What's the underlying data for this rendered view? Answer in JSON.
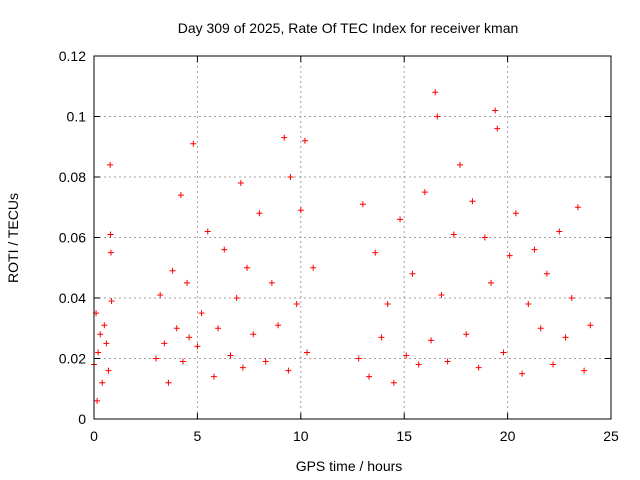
{
  "chart_data": {
    "type": "scatter",
    "title": "Day 309 of 2025, Rate Of TEC Index for receiver kman",
    "xlabel": "GPS time / hours",
    "ylabel": "ROTI / TECUs",
    "xlim": [
      0,
      25
    ],
    "ylim": [
      0,
      0.12
    ],
    "x_ticks": [
      "0",
      "5",
      "10",
      "15",
      "20",
      "25"
    ],
    "y_ticks": [
      "0",
      "0.02",
      "0.04",
      "0.06",
      "0.08",
      "0.1",
      "0.12"
    ],
    "grid": true,
    "marker": "+",
    "colors": {
      "series": "#ff0000",
      "grid": "#a0a0a0",
      "axis": "#000000"
    },
    "series": [
      {
        "x": [
          0.0,
          0.1,
          0.15,
          0.2,
          0.3,
          0.4,
          0.5,
          0.6,
          0.7,
          0.78,
          0.8,
          0.82,
          0.85,
          3.0,
          3.2,
          3.4,
          3.6,
          3.8,
          4.0,
          4.2,
          4.3,
          4.5,
          4.6,
          4.8,
          5.0,
          5.2,
          5.5,
          5.8,
          6.0,
          6.3,
          6.6,
          6.9,
          7.1,
          7.2,
          7.4,
          7.7,
          8.0,
          8.3,
          8.6,
          8.9,
          9.2,
          9.4,
          9.5,
          9.8,
          10.0,
          10.2,
          10.3,
          10.6,
          12.8,
          13.0,
          13.3,
          13.6,
          13.9,
          14.2,
          14.5,
          14.8,
          15.1,
          15.4,
          15.7,
          16.0,
          16.3,
          16.5,
          16.6,
          16.8,
          17.1,
          17.4,
          17.7,
          18.0,
          18.3,
          18.6,
          18.9,
          19.2,
          19.4,
          19.5,
          19.8,
          20.1,
          20.4,
          20.7,
          21.0,
          21.3,
          21.6,
          21.9,
          22.2,
          22.5,
          22.8,
          23.1,
          23.4,
          23.7,
          24.0
        ],
        "y": [
          0.018,
          0.035,
          0.006,
          0.022,
          0.028,
          0.012,
          0.031,
          0.025,
          0.016,
          0.084,
          0.061,
          0.055,
          0.039,
          0.02,
          0.041,
          0.025,
          0.012,
          0.049,
          0.03,
          0.074,
          0.019,
          0.045,
          0.027,
          0.091,
          0.024,
          0.035,
          0.062,
          0.014,
          0.03,
          0.056,
          0.021,
          0.04,
          0.078,
          0.017,
          0.05,
          0.028,
          0.068,
          0.019,
          0.045,
          0.031,
          0.093,
          0.016,
          0.08,
          0.038,
          0.069,
          0.092,
          0.022,
          0.05,
          0.02,
          0.071,
          0.014,
          0.055,
          0.027,
          0.038,
          0.012,
          0.066,
          0.021,
          0.048,
          0.018,
          0.075,
          0.026,
          0.108,
          0.1,
          0.041,
          0.019,
          0.061,
          0.084,
          0.028,
          0.072,
          0.017,
          0.06,
          0.045,
          0.102,
          0.096,
          0.022,
          0.054,
          0.068,
          0.015,
          0.038,
          0.056,
          0.03,
          0.048,
          0.018,
          0.062,
          0.027,
          0.04,
          0.07,
          0.016,
          0.031
        ]
      }
    ]
  }
}
